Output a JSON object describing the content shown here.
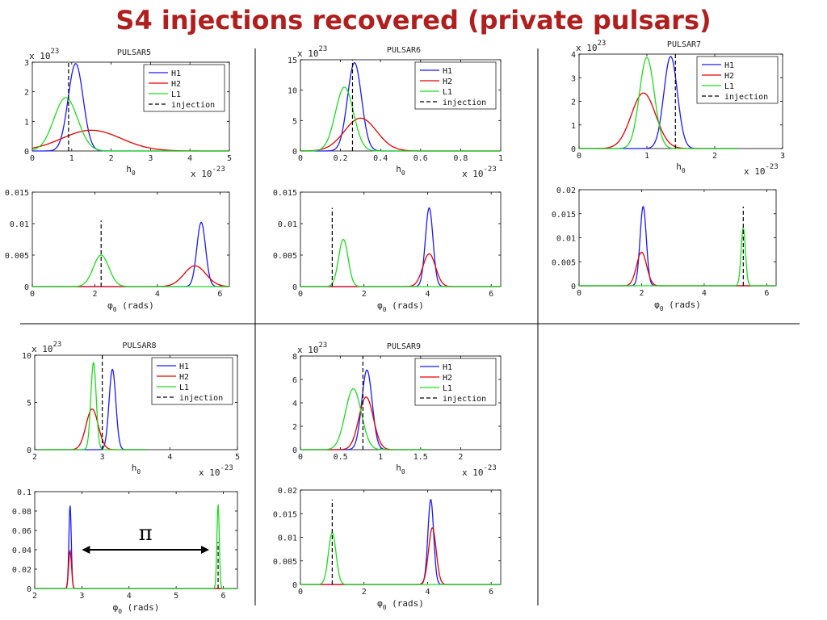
{
  "slide": {
    "title": "S4 injections recovered (private pulsars)"
  },
  "colors": {
    "H1": "#1a1aff",
    "H2": "#e60000",
    "L1": "#1ddd1d",
    "injection": "#000000"
  },
  "annotation": {
    "symbol": "π"
  },
  "chart_data": [
    {
      "id": "p5_h0",
      "type": "line",
      "title": "PULSAR5",
      "xlabel": "h0",
      "ylabel": "",
      "x_multiplier": "x 10^-23",
      "y_multiplier": "x 10^23",
      "xlim": [
        0,
        5
      ],
      "ylim": [
        0,
        3
      ],
      "xticks": [
        0,
        1,
        2,
        3,
        4,
        5
      ],
      "yticks": [
        0,
        1,
        2,
        3
      ],
      "legend": [
        "H1",
        "H2",
        "L1",
        "injection"
      ],
      "legend_position": "top-right",
      "series": [
        {
          "name": "H1",
          "shape": "gauss",
          "mu": 1.1,
          "sigma": 0.19,
          "amp": 2.95,
          "range": [
            0,
            5
          ]
        },
        {
          "name": "H2",
          "shape": "gauss",
          "mu": 1.5,
          "sigma": 0.75,
          "amp": 0.7,
          "range": [
            0,
            5
          ]
        },
        {
          "name": "L1",
          "shape": "gauss",
          "mu": 0.85,
          "sigma": 0.3,
          "amp": 1.8,
          "range": [
            0,
            5
          ]
        }
      ],
      "injection": 0.92
    },
    {
      "id": "p5_phi",
      "type": "line",
      "title": "",
      "xlabel": "φ0 (rads)",
      "ylabel": "",
      "xlim": [
        0,
        6.3
      ],
      "ylim": [
        0,
        0.015
      ],
      "xticks": [
        0,
        2,
        4,
        6
      ],
      "yticks": [
        0,
        0.005,
        0.01,
        0.015
      ],
      "series": [
        {
          "name": "H1",
          "shape": "gauss",
          "mu": 5.4,
          "sigma": 0.14,
          "amp": 0.0102,
          "range": [
            0,
            6.3
          ]
        },
        {
          "name": "H2",
          "shape": "gauss",
          "mu": 5.2,
          "sigma": 0.35,
          "amp": 0.0033,
          "range": [
            0,
            6.3
          ]
        },
        {
          "name": "L1",
          "shape": "gauss",
          "mu": 2.2,
          "sigma": 0.25,
          "amp": 0.005,
          "range": [
            0,
            6.3
          ]
        }
      ],
      "injection": 2.2,
      "injection_top": 0.0105
    },
    {
      "id": "p6_h0",
      "type": "line",
      "title": "PULSAR6",
      "xlabel": "h0",
      "ylabel": "",
      "x_multiplier": "x 10^-23",
      "y_multiplier": "x 10^23",
      "xlim": [
        0,
        1
      ],
      "ylim": [
        0,
        15
      ],
      "xticks": [
        0,
        0.2,
        0.4,
        0.6,
        0.8,
        1
      ],
      "yticks": [
        0,
        5,
        10,
        15
      ],
      "legend": [
        "H1",
        "H2",
        "L1",
        "injection"
      ],
      "legend_position": "top-right",
      "series": [
        {
          "name": "H1",
          "shape": "gauss",
          "mu": 0.27,
          "sigma": 0.035,
          "amp": 14.5,
          "range": [
            0,
            1
          ]
        },
        {
          "name": "H2",
          "shape": "gauss",
          "mu": 0.3,
          "sigma": 0.08,
          "amp": 5.4,
          "range": [
            0,
            1
          ]
        },
        {
          "name": "L1",
          "shape": "gauss",
          "mu": 0.22,
          "sigma": 0.045,
          "amp": 10.5,
          "range": [
            0,
            1
          ]
        }
      ],
      "injection": 0.26
    },
    {
      "id": "p6_phi",
      "type": "line",
      "title": "",
      "xlabel": "φ0 (rads)",
      "ylabel": "",
      "xlim": [
        0,
        6.3
      ],
      "ylim": [
        0,
        0.015
      ],
      "xticks": [
        0,
        2,
        4,
        6
      ],
      "yticks": [
        0,
        0.005,
        0.01,
        0.015
      ],
      "series": [
        {
          "name": "H1",
          "shape": "gauss",
          "mu": 4.05,
          "sigma": 0.12,
          "amp": 0.0125,
          "range": [
            0,
            6.3
          ]
        },
        {
          "name": "H2",
          "shape": "gauss",
          "mu": 4.05,
          "sigma": 0.2,
          "amp": 0.0052,
          "range": [
            0,
            6.3
          ]
        },
        {
          "name": "L1",
          "shape": "gauss",
          "mu": 1.35,
          "sigma": 0.15,
          "amp": 0.0075,
          "range": [
            0,
            6.3
          ]
        }
      ],
      "injection": 1.0,
      "injection_top": 0.0125
    },
    {
      "id": "p7_h0",
      "type": "line",
      "title": "PULSAR7",
      "xlabel": "h0",
      "ylabel": "",
      "x_multiplier": "x 10^-23",
      "y_multiplier": "x 10^23",
      "xlim": [
        0,
        3
      ],
      "ylim": [
        0,
        4
      ],
      "xticks": [
        0,
        1,
        2,
        3
      ],
      "yticks": [
        0,
        1,
        2,
        3,
        4
      ],
      "legend": [
        "H1",
        "H2",
        "L1",
        "injection"
      ],
      "legend_position": "top-right",
      "series": [
        {
          "name": "H1",
          "shape": "gauss",
          "mu": 1.35,
          "sigma": 0.1,
          "amp": 3.9,
          "range": [
            0,
            2.35
          ]
        },
        {
          "name": "H2",
          "shape": "gauss",
          "mu": 0.95,
          "sigma": 0.18,
          "amp": 2.35,
          "range": [
            0,
            2.35
          ]
        },
        {
          "name": "L1",
          "shape": "gauss",
          "mu": 1.0,
          "sigma": 0.11,
          "amp": 3.85,
          "range": [
            0,
            2.35
          ]
        }
      ],
      "injection": 1.42
    },
    {
      "id": "p7_phi",
      "type": "line",
      "title": "",
      "xlabel": "φ0 (rads)",
      "ylabel": "",
      "xlim": [
        0,
        6.3
      ],
      "ylim": [
        0,
        0.02
      ],
      "xticks": [
        0,
        2,
        4,
        6
      ],
      "yticks": [
        0,
        0.005,
        0.01,
        0.015,
        0.02
      ],
      "series": [
        {
          "name": "H1",
          "shape": "gauss",
          "mu": 2.05,
          "sigma": 0.1,
          "amp": 0.0165,
          "range": [
            0,
            6.3
          ]
        },
        {
          "name": "H2",
          "shape": "gauss",
          "mu": 2.0,
          "sigma": 0.16,
          "amp": 0.007,
          "range": [
            0,
            6.3
          ]
        },
        {
          "name": "L1",
          "shape": "gauss",
          "mu": 5.25,
          "sigma": 0.07,
          "amp": 0.012,
          "range": [
            0,
            6.3
          ]
        }
      ],
      "injection": 5.25,
      "injection_top": 0.0165
    },
    {
      "id": "p8_h0",
      "type": "line",
      "title": "PULSAR8",
      "xlabel": "h0",
      "ylabel": "",
      "x_multiplier": "x 10^-23",
      "y_multiplier": "x 10^23",
      "xlim": [
        2,
        5
      ],
      "ylim": [
        0,
        10
      ],
      "xticks": [
        2,
        3,
        4,
        5
      ],
      "yticks": [
        0,
        5,
        10
      ],
      "legend": [
        "H1",
        "H2",
        "L1",
        "injection"
      ],
      "legend_position": "top-right",
      "series": [
        {
          "name": "H1",
          "shape": "gauss",
          "mu": 3.15,
          "sigma": 0.05,
          "amp": 8.5,
          "range": [
            2.05,
            3.65
          ]
        },
        {
          "name": "H2",
          "shape": "gauss",
          "mu": 2.85,
          "sigma": 0.09,
          "amp": 4.3,
          "range": [
            2.05,
            3.65
          ]
        },
        {
          "name": "L1",
          "shape": "gauss",
          "mu": 2.87,
          "sigma": 0.04,
          "amp": 9.2,
          "range": [
            2.05,
            3.65
          ]
        }
      ],
      "injection": 3.0
    },
    {
      "id": "p8_phi",
      "type": "line",
      "title": "",
      "xlabel": "φ0 (rads)",
      "ylabel": "",
      "xlim": [
        2,
        6.3
      ],
      "ylim": [
        0,
        0.1
      ],
      "xticks": [
        2,
        3,
        4,
        5,
        6
      ],
      "yticks": [
        0,
        0.02,
        0.04,
        0.06,
        0.08,
        0.1
      ],
      "series": [
        {
          "name": "H1",
          "shape": "gauss",
          "mu": 2.75,
          "sigma": 0.025,
          "amp": 0.086,
          "range": [
            2,
            6.3
          ]
        },
        {
          "name": "H2",
          "shape": "gauss",
          "mu": 2.75,
          "sigma": 0.03,
          "amp": 0.039,
          "range": [
            2,
            6.3
          ]
        },
        {
          "name": "L1",
          "shape": "gauss",
          "mu": 5.89,
          "sigma": 0.025,
          "amp": 0.087,
          "range": [
            2,
            6.3
          ]
        }
      ],
      "injection": 5.89,
      "injection_top": 0.048,
      "arrow": {
        "from": 3.0,
        "to": 5.7,
        "y": 0.04
      }
    },
    {
      "id": "p9_h0",
      "type": "line",
      "title": "PULSAR9",
      "xlabel": "h0",
      "ylabel": "",
      "x_multiplier": "x 10^-23",
      "y_multiplier": "x 10^23",
      "xlim": [
        0,
        2.5
      ],
      "ylim": [
        0,
        8
      ],
      "xticks": [
        0,
        0.5,
        1,
        1.5,
        2
      ],
      "yticks": [
        0,
        2,
        4,
        6,
        8
      ],
      "legend": [
        "H1",
        "H2",
        "L1",
        "injection"
      ],
      "legend_position": "top-right",
      "series": [
        {
          "name": "H1",
          "shape": "gauss",
          "mu": 0.83,
          "sigma": 0.065,
          "amp": 6.8,
          "range": [
            0,
            1.6
          ]
        },
        {
          "name": "H2",
          "shape": "gauss",
          "mu": 0.82,
          "sigma": 0.09,
          "amp": 4.5,
          "range": [
            0,
            1.6
          ]
        },
        {
          "name": "L1",
          "shape": "gauss",
          "mu": 0.66,
          "sigma": 0.1,
          "amp": 5.2,
          "range": [
            0,
            1.6
          ]
        }
      ],
      "injection": 0.78
    },
    {
      "id": "p9_phi",
      "type": "line",
      "title": "",
      "xlabel": "φ0 (rads)",
      "ylabel": "",
      "xlim": [
        0,
        6.3
      ],
      "ylim": [
        0,
        0.02
      ],
      "xticks": [
        0,
        2,
        4,
        6
      ],
      "yticks": [
        0,
        0.005,
        0.01,
        0.015,
        0.02
      ],
      "series": [
        {
          "name": "H1",
          "shape": "gauss",
          "mu": 4.1,
          "sigma": 0.09,
          "amp": 0.018,
          "range": [
            0,
            6.3
          ]
        },
        {
          "name": "H2",
          "shape": "gauss",
          "mu": 4.15,
          "sigma": 0.12,
          "amp": 0.012,
          "range": [
            0,
            6.3
          ]
        },
        {
          "name": "L1",
          "shape": "gauss",
          "mu": 1.0,
          "sigma": 0.12,
          "amp": 0.011,
          "range": [
            0,
            6.3
          ]
        }
      ],
      "injection": 1.0,
      "injection_top": 0.018
    }
  ]
}
